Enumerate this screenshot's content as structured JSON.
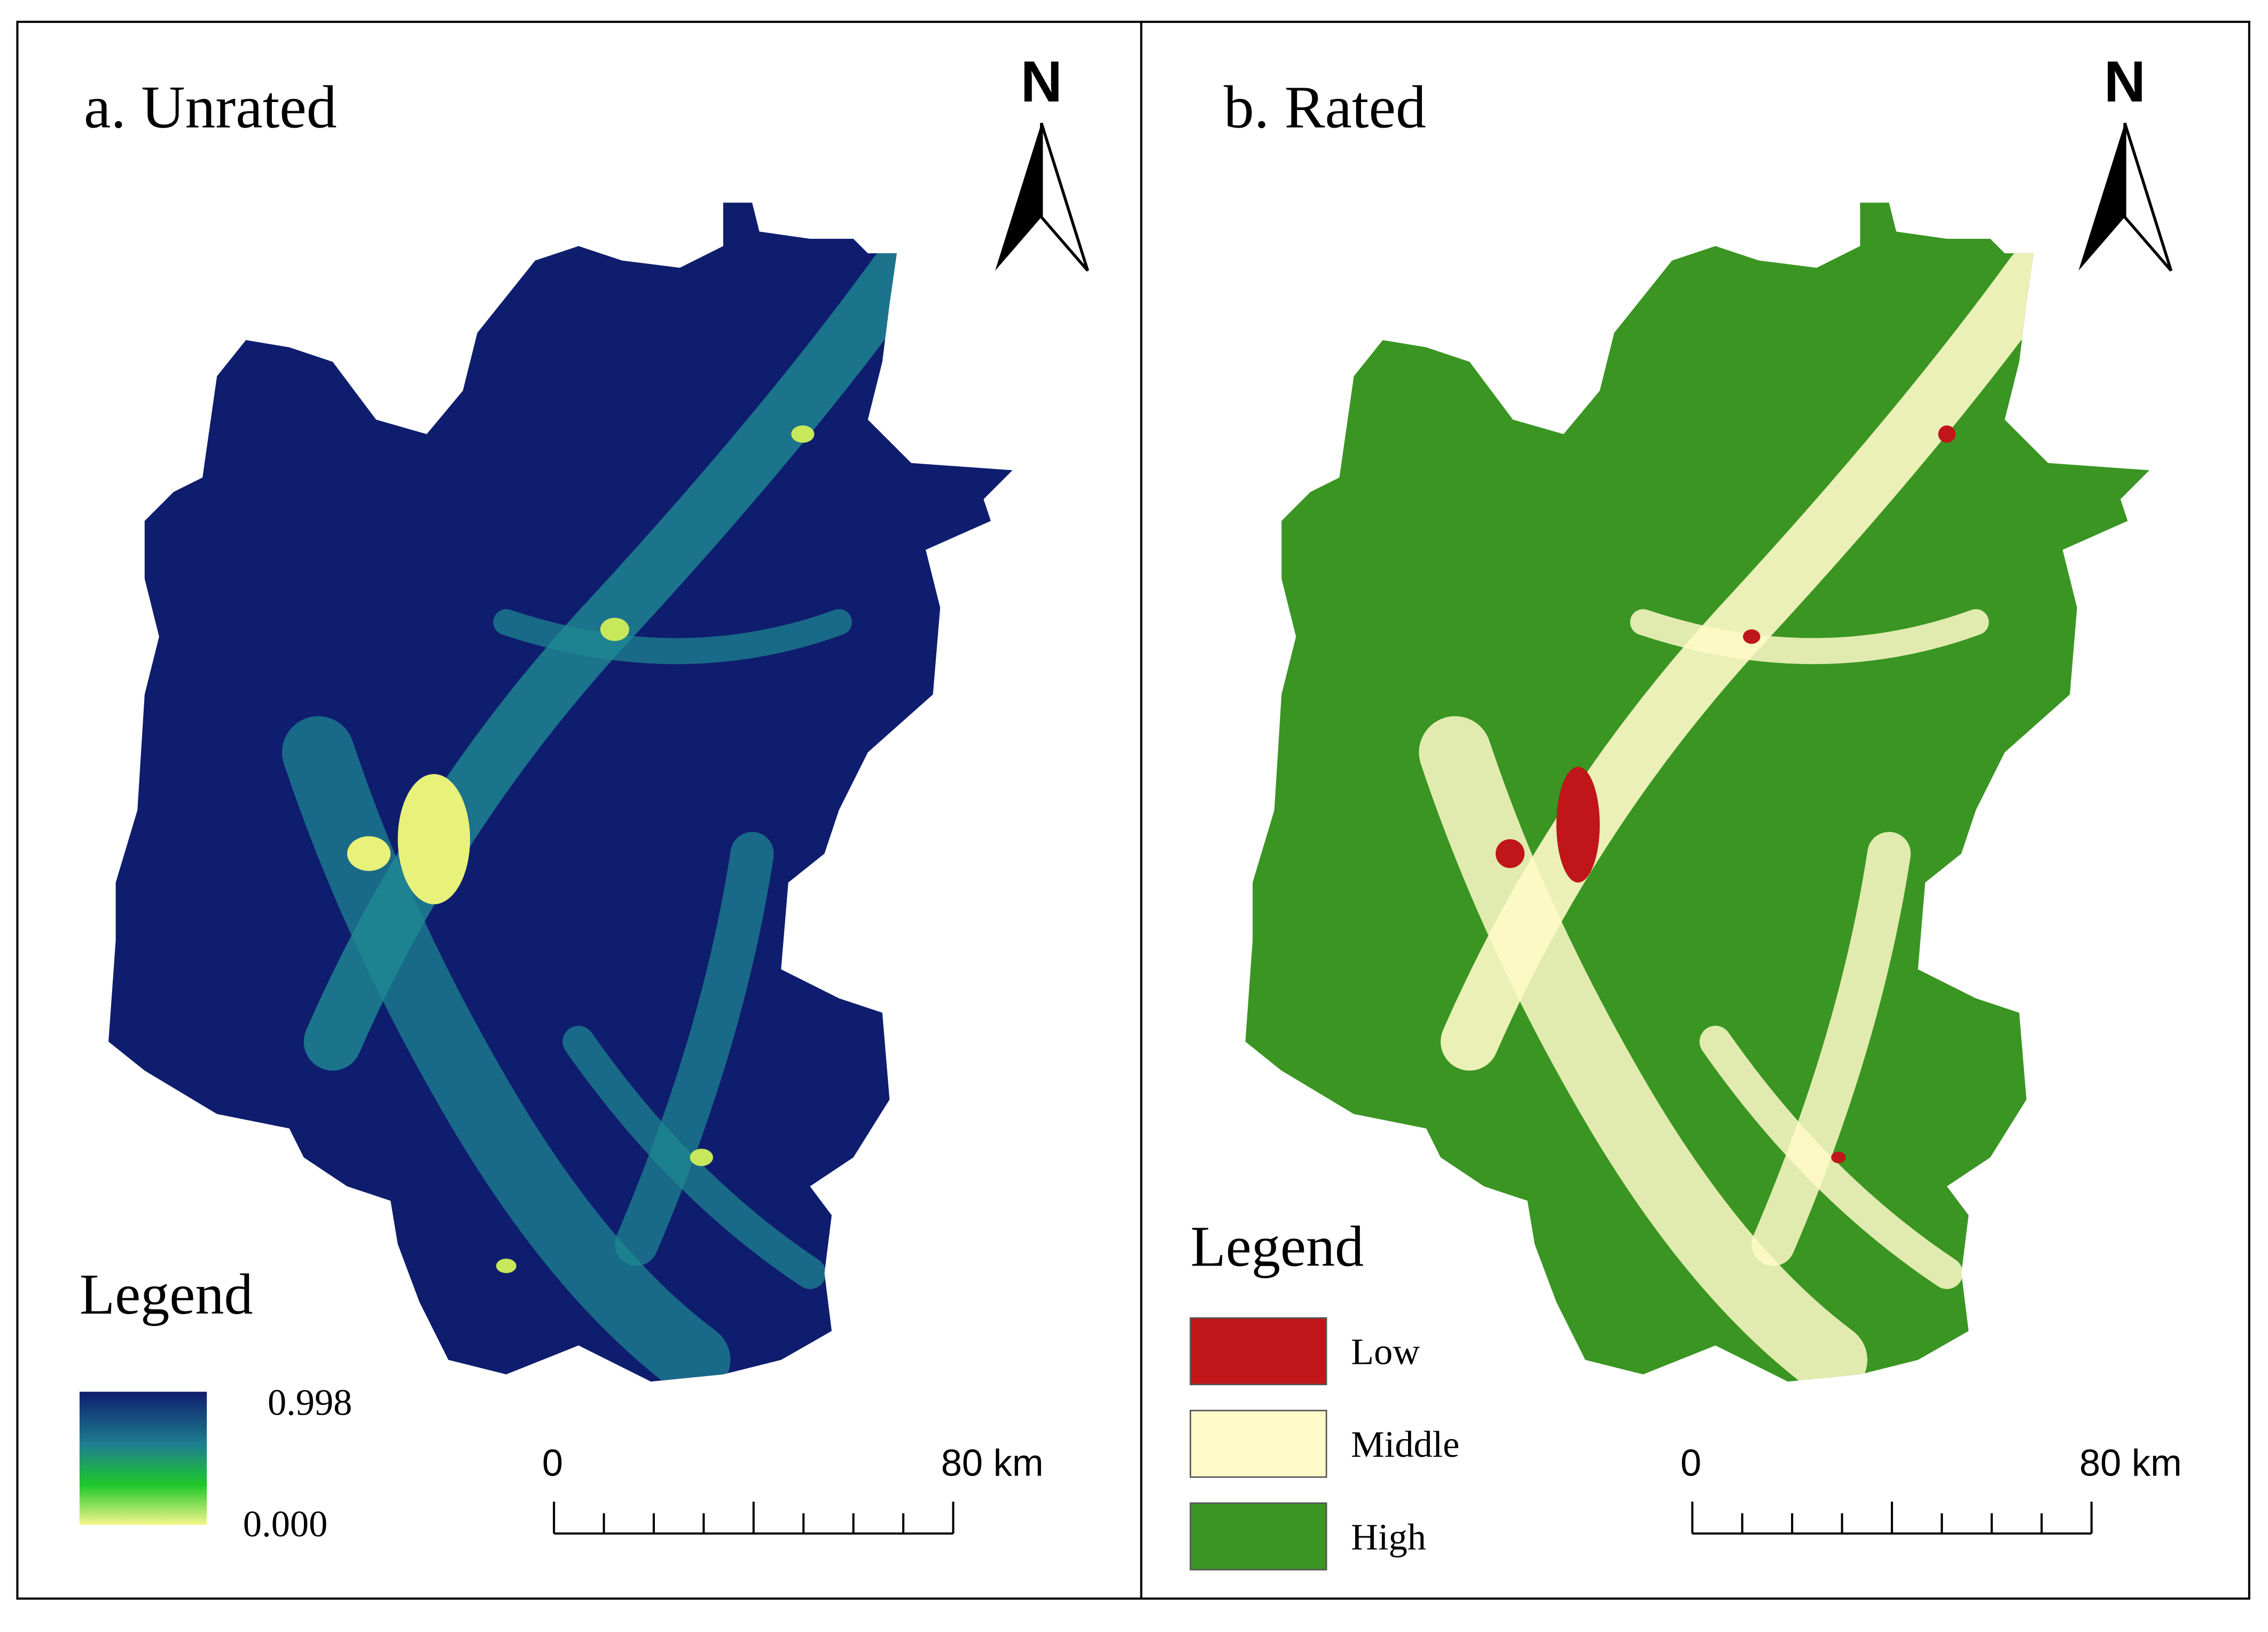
{
  "panels": [
    {
      "title": "a. Unrated",
      "north": "N",
      "legend": {
        "title": "Legend",
        "max_label": "0.998",
        "min_label": "0.000"
      },
      "scale": {
        "start": "0",
        "end": "80 km"
      }
    },
    {
      "title": "b. Rated",
      "north": "N",
      "legend": {
        "title": "Legend",
        "classes": [
          {
            "label": "Low",
            "color": "#c0161a"
          },
          {
            "label": "Middle",
            "color": "#fffac8"
          },
          {
            "label": "High",
            "color": "#3a9522"
          }
        ]
      },
      "scale": {
        "start": "0",
        "end": "80 km"
      }
    }
  ]
}
